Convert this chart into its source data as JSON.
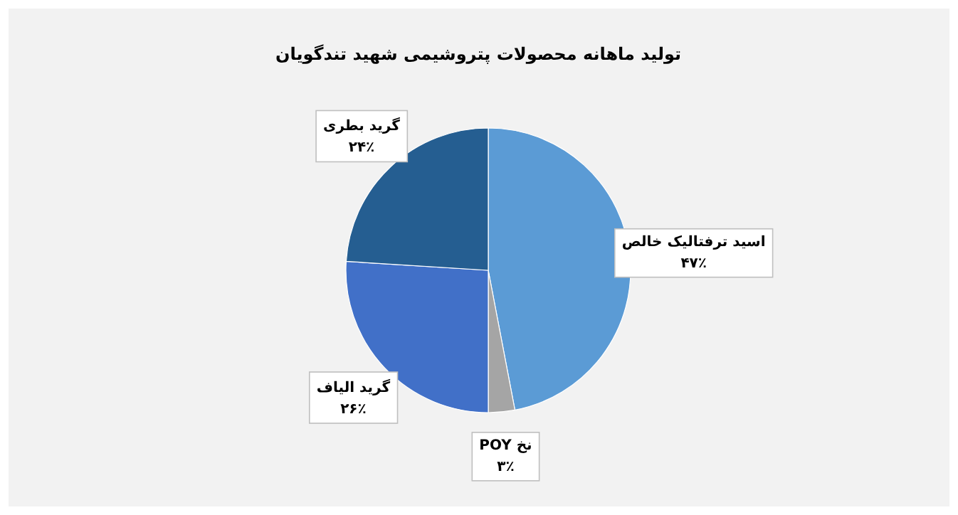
{
  "chart_data": {
    "type": "pie",
    "title": "تولید ماهانه محصولات پتروشیمی شهید تندگویان",
    "categories": [
      "اسید ترفتالیک خالص",
      "نخ POY",
      "گرید الیاف",
      "گرید بطری"
    ],
    "values": [
      47,
      3,
      26,
      24
    ],
    "value_labels": [
      "۴۷٪",
      "۳٪",
      "۲۶٪",
      "۲۴٪"
    ],
    "colors": [
      "#5b9bd5",
      "#a5a5a5",
      "#4170c8",
      "#255e91"
    ]
  }
}
